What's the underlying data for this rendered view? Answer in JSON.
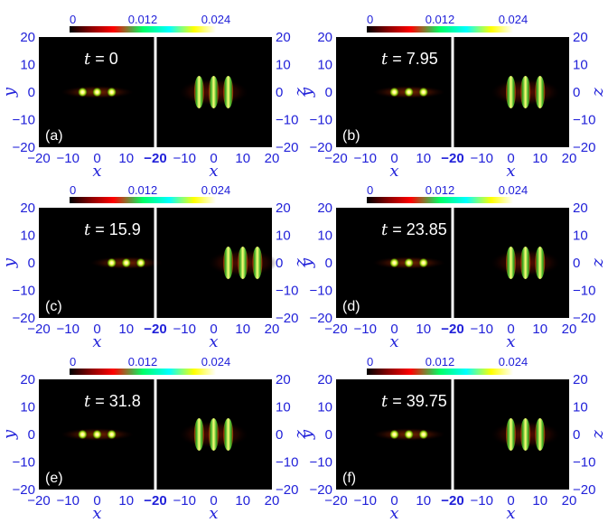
{
  "chart_data": [
    {
      "type": "heatmap",
      "panel_label": "(a)",
      "time_symbol": "t",
      "time_value": "0",
      "left": {
        "xlabel": "x",
        "ylabel": "y",
        "xlim": [
          -20,
          20
        ],
        "ylim": [
          -20,
          20
        ],
        "xticks": [
          "−20",
          "−10",
          "0",
          "10"
        ],
        "yticks": [
          "20",
          "10",
          "0",
          "−10",
          "−20"
        ],
        "blobs_x": [
          -5,
          0,
          5
        ],
        "blobs_y": 0
      },
      "right": {
        "xlabel": "x",
        "zlabel": "z",
        "xlim": [
          -20,
          20
        ],
        "ylim": [
          -20,
          20
        ],
        "xticks": [
          "−20",
          "−10",
          "0",
          "10",
          "20"
        ],
        "zticks": [
          "20",
          "10",
          "0",
          "−10",
          "−20"
        ],
        "blobs_x": [
          -5,
          0,
          5
        ],
        "blobs_z": 0
      },
      "colorbar": {
        "min": 0,
        "max": 0.024,
        "ticks": [
          "0",
          "0.012",
          "0.024"
        ]
      }
    },
    {
      "type": "heatmap",
      "panel_label": "(b)",
      "time_symbol": "t",
      "time_value": "7.95",
      "left": {
        "xlabel": "x",
        "ylabel": "y",
        "xlim": [
          -20,
          20
        ],
        "ylim": [
          -20,
          20
        ],
        "xticks": [
          "−20",
          "−10",
          "0",
          "10"
        ],
        "yticks": [
          "20",
          "10",
          "0",
          "−10",
          "−20"
        ],
        "blobs_x": [
          0,
          5,
          10
        ],
        "blobs_y": 0
      },
      "right": {
        "xlabel": "x",
        "zlabel": "z",
        "xlim": [
          -20,
          20
        ],
        "ylim": [
          -20,
          20
        ],
        "xticks": [
          "−20",
          "−10",
          "0",
          "10",
          "20"
        ],
        "zticks": [
          "20",
          "10",
          "0",
          "−10",
          "−20"
        ],
        "blobs_x": [
          0,
          5,
          10
        ],
        "blobs_z": 0
      },
      "colorbar": {
        "min": 0,
        "max": 0.024,
        "ticks": [
          "0",
          "0.012",
          "0.024"
        ]
      }
    },
    {
      "type": "heatmap",
      "panel_label": "(c)",
      "time_symbol": "t",
      "time_value": "15.9",
      "left": {
        "xlabel": "x",
        "ylabel": "y",
        "xlim": [
          -20,
          20
        ],
        "ylim": [
          -20,
          20
        ],
        "xticks": [
          "−20",
          "−10",
          "0",
          "10"
        ],
        "yticks": [
          "20",
          "10",
          "0",
          "−10",
          "−20"
        ],
        "blobs_x": [
          5,
          10,
          15
        ],
        "blobs_y": 0
      },
      "right": {
        "xlabel": "x",
        "zlabel": "z",
        "xlim": [
          -20,
          20
        ],
        "ylim": [
          -20,
          20
        ],
        "xticks": [
          "−20",
          "−10",
          "0",
          "10",
          "20"
        ],
        "zticks": [
          "20",
          "10",
          "0",
          "−10",
          "−20"
        ],
        "blobs_x": [
          5,
          10,
          15
        ],
        "blobs_z": 0
      },
      "colorbar": {
        "min": 0,
        "max": 0.024,
        "ticks": [
          "0",
          "0.012",
          "0.024"
        ]
      }
    },
    {
      "type": "heatmap",
      "panel_label": "(d)",
      "time_symbol": "t",
      "time_value": "23.85",
      "left": {
        "xlabel": "x",
        "ylabel": "y",
        "xlim": [
          -20,
          20
        ],
        "ylim": [
          -20,
          20
        ],
        "xticks": [
          "−20",
          "−10",
          "0",
          "10"
        ],
        "yticks": [
          "20",
          "10",
          "0",
          "−10",
          "−20"
        ],
        "blobs_x": [
          0,
          5,
          10
        ],
        "blobs_y": 0
      },
      "right": {
        "xlabel": "x",
        "zlabel": "z",
        "xlim": [
          -20,
          20
        ],
        "ylim": [
          -20,
          20
        ],
        "xticks": [
          "−20",
          "−10",
          "0",
          "10",
          "20"
        ],
        "zticks": [
          "20",
          "10",
          "0",
          "−10",
          "−20"
        ],
        "blobs_x": [
          0,
          5,
          10
        ],
        "blobs_z": 0
      },
      "colorbar": {
        "min": 0,
        "max": 0.024,
        "ticks": [
          "0",
          "0.012",
          "0.024"
        ]
      }
    },
    {
      "type": "heatmap",
      "panel_label": "(e)",
      "time_symbol": "t",
      "time_value": "31.8",
      "left": {
        "xlabel": "x",
        "ylabel": "y",
        "xlim": [
          -20,
          20
        ],
        "ylim": [
          -20,
          20
        ],
        "xticks": [
          "−20",
          "−10",
          "0",
          "10"
        ],
        "yticks": [
          "20",
          "10",
          "0",
          "−10",
          "−20"
        ],
        "blobs_x": [
          -5,
          0,
          5
        ],
        "blobs_y": 0
      },
      "right": {
        "xlabel": "x",
        "zlabel": "z",
        "xlim": [
          -20,
          20
        ],
        "ylim": [
          -20,
          20
        ],
        "xticks": [
          "−20",
          "−10",
          "0",
          "10",
          "20"
        ],
        "zticks": [
          "20",
          "10",
          "0",
          "−10",
          "−20"
        ],
        "blobs_x": [
          -5,
          0,
          5
        ],
        "blobs_z": 0
      },
      "colorbar": {
        "min": 0,
        "max": 0.024,
        "ticks": [
          "0",
          "0.012",
          "0.024"
        ]
      }
    },
    {
      "type": "heatmap",
      "panel_label": "(f)",
      "time_symbol": "t",
      "time_value": "39.75",
      "left": {
        "xlabel": "x",
        "ylabel": "y",
        "xlim": [
          -20,
          20
        ],
        "ylim": [
          -20,
          20
        ],
        "xticks": [
          "−20",
          "−10",
          "0",
          "10"
        ],
        "yticks": [
          "20",
          "10",
          "0",
          "−10",
          "−20"
        ],
        "blobs_x": [
          0,
          5,
          10
        ],
        "blobs_y": 0
      },
      "right": {
        "xlabel": "x",
        "zlabel": "z",
        "xlim": [
          -20,
          20
        ],
        "ylim": [
          -20,
          20
        ],
        "xticks": [
          "−20",
          "−10",
          "0",
          "10",
          "20"
        ],
        "zticks": [
          "20",
          "10",
          "0",
          "−10",
          "−20"
        ],
        "blobs_x": [
          0,
          5,
          10
        ],
        "blobs_z": 0
      },
      "colorbar": {
        "min": 0,
        "max": 0.024,
        "ticks": [
          "0",
          "0.012",
          "0.024"
        ]
      }
    }
  ],
  "colors": {
    "tick_text": "#2121d9",
    "plot_background": "#000000",
    "divider": "#ffffff",
    "colormap": [
      "#000000",
      "#8b0000",
      "#ff0000",
      "#00ff00",
      "#00ffff",
      "#ffff00",
      "#ffffff"
    ],
    "left_core": "#ffffcc",
    "left_halo": "#8b3a00",
    "right_core": "#ffff66",
    "right_mid": "#33cc33",
    "right_edge": "#cc2200"
  }
}
